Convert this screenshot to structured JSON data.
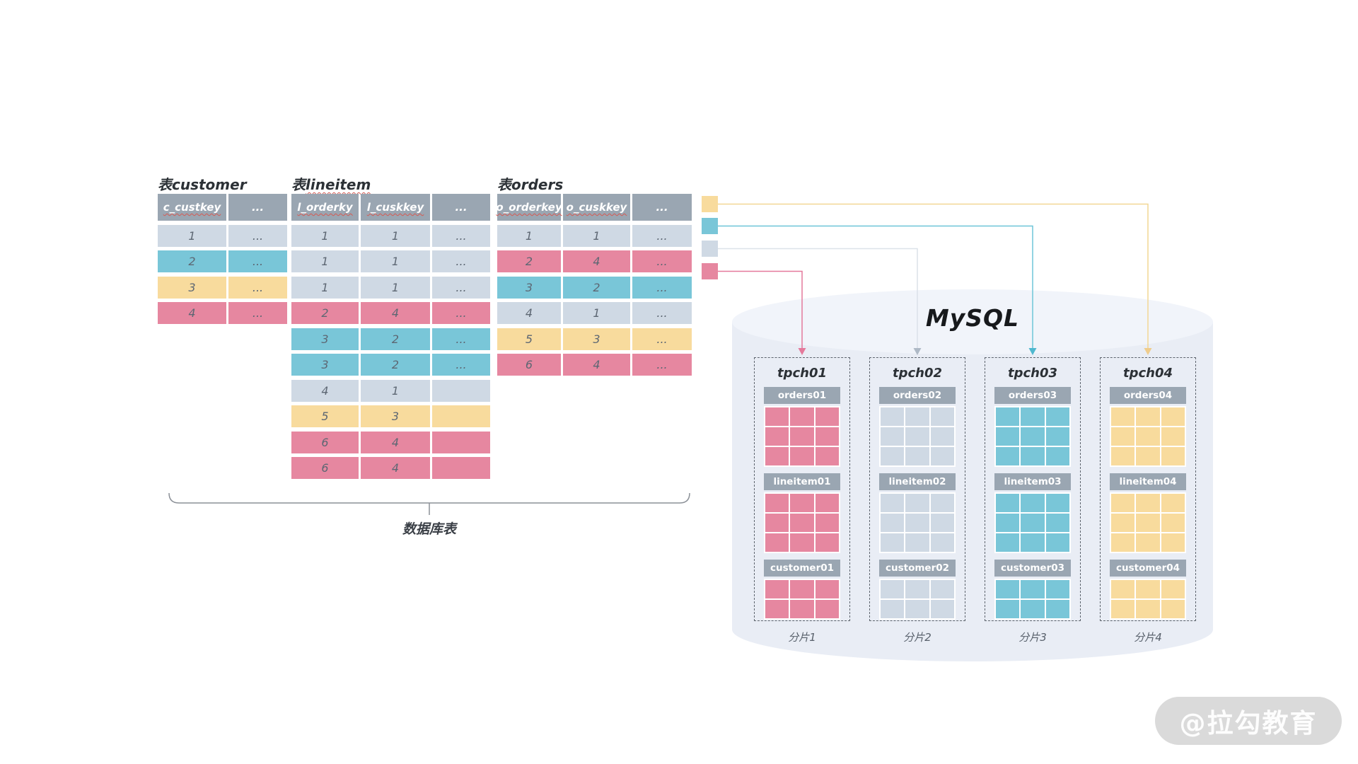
{
  "colors": {
    "palette": {
      "gray": "#cfd9e4",
      "blue": "#79c6d8",
      "yellow": "#f8db9d",
      "pink": "#e687a0"
    },
    "header_bg": "#9aa6b2",
    "line": {
      "yellow": "#f2d794",
      "blue": "#6ec5d8",
      "gray": "#dce2e9",
      "pink": "#e4799b"
    },
    "arrow": {
      "yellow": "#efcc8c",
      "blue": "#4fb8cf",
      "gray": "#aeb9c6",
      "pink": "#e4799b"
    },
    "cylinder_body": "#e9edf5",
    "cylinder_top": "#f1f4fa",
    "underline": "#d65a52",
    "bracket": "#8b9097"
  },
  "source_tables": [
    {
      "id": "customer",
      "title_prefix": "表",
      "title_name": "customer",
      "title_name_underlined": false,
      "columns": [
        {
          "label": "c_custkey",
          "underline": true
        },
        {
          "label": "...",
          "underline": false
        }
      ],
      "rows": [
        {
          "color": "gray",
          "cells": [
            "1",
            "..."
          ]
        },
        {
          "color": "blue",
          "cells": [
            "2",
            "..."
          ]
        },
        {
          "color": "yellow",
          "cells": [
            "3",
            "..."
          ]
        },
        {
          "color": "pink",
          "cells": [
            "4",
            "..."
          ]
        }
      ]
    },
    {
      "id": "lineitem",
      "title_prefix": "表",
      "title_name": "lineitem",
      "title_name_underlined": true,
      "columns": [
        {
          "label": "l_orderky",
          "underline": true
        },
        {
          "label": "l_cuskkey",
          "underline": true
        },
        {
          "label": "...",
          "underline": false
        }
      ],
      "rows": [
        {
          "color": "gray",
          "cells": [
            "1",
            "1",
            "..."
          ]
        },
        {
          "color": "gray",
          "cells": [
            "1",
            "1",
            "..."
          ]
        },
        {
          "color": "gray",
          "cells": [
            "1",
            "1",
            "..."
          ]
        },
        {
          "color": "pink",
          "cells": [
            "2",
            "4",
            "..."
          ]
        },
        {
          "color": "blue",
          "cells": [
            "3",
            "2",
            "..."
          ]
        },
        {
          "color": "blue",
          "cells": [
            "3",
            "2",
            "..."
          ]
        },
        {
          "color": "gray",
          "cells": [
            "4",
            "1",
            ""
          ]
        },
        {
          "color": "yellow",
          "cells": [
            "5",
            "3",
            ""
          ]
        },
        {
          "color": "pink",
          "cells": [
            "6",
            "4",
            ""
          ]
        },
        {
          "color": "pink",
          "cells": [
            "6",
            "4",
            ""
          ]
        }
      ]
    },
    {
      "id": "orders",
      "title_prefix": "表",
      "title_name": "orders",
      "title_name_underlined": false,
      "columns": [
        {
          "label": "o_orderkey",
          "underline": true
        },
        {
          "label": "o_cuskkey",
          "underline": true
        },
        {
          "label": "...",
          "underline": false
        }
      ],
      "rows": [
        {
          "color": "gray",
          "cells": [
            "1",
            "1",
            "..."
          ]
        },
        {
          "color": "pink",
          "cells": [
            "2",
            "4",
            "..."
          ]
        },
        {
          "color": "blue",
          "cells": [
            "3",
            "2",
            "..."
          ]
        },
        {
          "color": "gray",
          "cells": [
            "4",
            "1",
            "..."
          ]
        },
        {
          "color": "yellow",
          "cells": [
            "5",
            "3",
            "..."
          ]
        },
        {
          "color": "pink",
          "cells": [
            "6",
            "4",
            "..."
          ]
        }
      ]
    }
  ],
  "legend": [
    {
      "color": "yellow",
      "target": "tpch04"
    },
    {
      "color": "blue",
      "target": "tpch03"
    },
    {
      "color": "gray",
      "target": "tpch02"
    },
    {
      "color": "pink",
      "target": "tpch01"
    }
  ],
  "mysql": {
    "label": "MySQL",
    "shards": [
      {
        "name": "tpch01",
        "caption": "分片1",
        "color": "pink",
        "tables": [
          {
            "label": "orders01",
            "rows": 3
          },
          {
            "label": "lineitem01",
            "rows": 3
          },
          {
            "label": "customer01",
            "rows": 2
          }
        ]
      },
      {
        "name": "tpch02",
        "caption": "分片2",
        "color": "gray",
        "tables": [
          {
            "label": "orders02",
            "rows": 3
          },
          {
            "label": "lineitem02",
            "rows": 3
          },
          {
            "label": "customer02",
            "rows": 2
          }
        ]
      },
      {
        "name": "tpch03",
        "caption": "分片3",
        "color": "blue",
        "tables": [
          {
            "label": "orders03",
            "rows": 3
          },
          {
            "label": "lineitem03",
            "rows": 3
          },
          {
            "label": "customer03",
            "rows": 2
          }
        ]
      },
      {
        "name": "tpch04",
        "caption": "分片4",
        "color": "yellow",
        "tables": [
          {
            "label": "orders04",
            "rows": 3
          },
          {
            "label": "lineitem04",
            "rows": 3
          },
          {
            "label": "customer04",
            "rows": 2
          }
        ]
      }
    ]
  },
  "bracket_label": "数据库表",
  "watermark": "@拉勾教育"
}
